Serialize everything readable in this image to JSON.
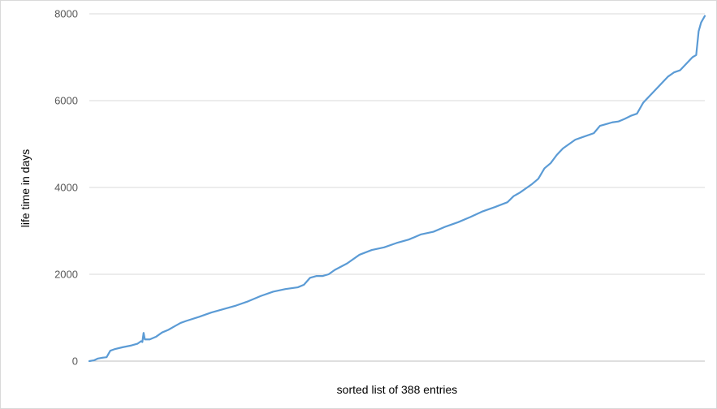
{
  "chart_data": {
    "type": "line",
    "title": "",
    "xlabel": "sorted list of 388 entries",
    "ylabel": "life time in days",
    "x_count": 388,
    "ylim": [
      0,
      8000
    ],
    "yticks": [
      0,
      2000,
      4000,
      6000,
      8000
    ],
    "ytick_labels": [
      "0",
      "2000",
      "4000",
      "6000",
      "8000"
    ],
    "grid": true,
    "legend": "none",
    "series": [
      {
        "color": "#5b9bd5",
        "points": [
          [
            1,
            0
          ],
          [
            5,
            20
          ],
          [
            8,
            60
          ],
          [
            12,
            80
          ],
          [
            15,
            90
          ],
          [
            18,
            240
          ],
          [
            22,
            280
          ],
          [
            28,
            320
          ],
          [
            35,
            360
          ],
          [
            40,
            400
          ],
          [
            43,
            460
          ],
          [
            44,
            440
          ],
          [
            45,
            650
          ],
          [
            46,
            500
          ],
          [
            50,
            500
          ],
          [
            55,
            560
          ],
          [
            60,
            660
          ],
          [
            65,
            720
          ],
          [
            70,
            800
          ],
          [
            75,
            880
          ],
          [
            80,
            930
          ],
          [
            90,
            1020
          ],
          [
            100,
            1120
          ],
          [
            110,
            1200
          ],
          [
            120,
            1280
          ],
          [
            130,
            1380
          ],
          [
            140,
            1500
          ],
          [
            150,
            1600
          ],
          [
            160,
            1660
          ],
          [
            170,
            1700
          ],
          [
            175,
            1760
          ],
          [
            180,
            1920
          ],
          [
            185,
            1960
          ],
          [
            190,
            1960
          ],
          [
            195,
            2000
          ],
          [
            200,
            2100
          ],
          [
            210,
            2250
          ],
          [
            220,
            2450
          ],
          [
            230,
            2560
          ],
          [
            240,
            2620
          ],
          [
            250,
            2720
          ],
          [
            260,
            2800
          ],
          [
            270,
            2920
          ],
          [
            280,
            2980
          ],
          [
            290,
            3100
          ],
          [
            300,
            3200
          ],
          [
            310,
            3320
          ],
          [
            320,
            3450
          ],
          [
            330,
            3550
          ],
          [
            340,
            3660
          ],
          [
            345,
            3800
          ],
          [
            350,
            3880
          ],
          [
            360,
            4080
          ],
          [
            365,
            4200
          ],
          [
            370,
            4440
          ],
          [
            375,
            4560
          ],
          [
            380,
            4750
          ],
          [
            385,
            4900
          ],
          [
            390,
            5000
          ],
          [
            395,
            5100
          ],
          [
            400,
            5150
          ],
          [
            410,
            5250
          ],
          [
            415,
            5420
          ],
          [
            420,
            5460
          ],
          [
            425,
            5500
          ],
          [
            430,
            5520
          ],
          [
            435,
            5580
          ],
          [
            440,
            5650
          ],
          [
            445,
            5700
          ],
          [
            450,
            5950
          ],
          [
            455,
            6100
          ],
          [
            460,
            6250
          ],
          [
            465,
            6400
          ],
          [
            470,
            6550
          ],
          [
            475,
            6650
          ],
          [
            480,
            6700
          ],
          [
            485,
            6850
          ],
          [
            490,
            7000
          ],
          [
            493,
            7050
          ],
          [
            495,
            7600
          ],
          [
            497,
            7800
          ],
          [
            500,
            7950
          ]
        ]
      }
    ]
  }
}
